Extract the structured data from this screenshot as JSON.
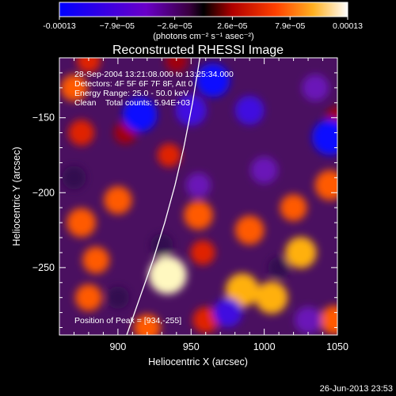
{
  "chart_data": {
    "type": "heatmap",
    "title": "Reconstructed RHESSI Image",
    "xlabel": "Heliocentric X (arcsec)",
    "ylabel": "Heliocentric Y (arcsec)",
    "xlim": [
      860,
      1050
    ],
    "ylim": [
      -295,
      -110
    ],
    "xticks": [
      900,
      950,
      1000,
      1050
    ],
    "yticks": [
      -150,
      -200,
      -250
    ],
    "colorbar": {
      "ticks": [
        "-0.00013",
        "−7.9e−05",
        "−2.6e−05",
        "2.6e−05",
        "7.9e−05",
        "0.00013"
      ],
      "unit": "(photons cm⁻² s⁻¹ asec⁻²)",
      "min": -0.00013,
      "max": 0.00013
    },
    "info_lines": [
      "28-Sep-2004 13:21:08.000 to 13:25:34.000",
      "Detectors: 4F 5F 6F 7F 8F, Att 0",
      "Energy Range: 25.0 - 50.0 keV",
      "Clean    Total counts: 5.94E+03"
    ],
    "peak_text": "Position of Peak = [934,-255]",
    "peak": [
      934,
      -255
    ],
    "blobs": [
      {
        "x": 934,
        "y": -255,
        "v": 1.0
      },
      {
        "x": 985,
        "y": -265,
        "v": 0.8
      },
      {
        "x": 1005,
        "y": -270,
        "v": 0.75
      },
      {
        "x": 1025,
        "y": -240,
        "v": 0.7
      },
      {
        "x": 1045,
        "y": -195,
        "v": 0.65
      },
      {
        "x": 955,
        "y": -215,
        "v": 0.6
      },
      {
        "x": 990,
        "y": -225,
        "v": 0.6
      },
      {
        "x": 875,
        "y": -220,
        "v": 0.6
      },
      {
        "x": 900,
        "y": -205,
        "v": 0.55
      },
      {
        "x": 1020,
        "y": -210,
        "v": 0.5
      },
      {
        "x": 1048,
        "y": -285,
        "v": 0.6
      },
      {
        "x": 960,
        "y": -285,
        "v": 0.45
      },
      {
        "x": 880,
        "y": -270,
        "v": 0.5
      },
      {
        "x": 920,
        "y": -290,
        "v": 0.5
      },
      {
        "x": 875,
        "y": -160,
        "v": 0.45
      },
      {
        "x": 870,
        "y": -130,
        "v": 0.5
      },
      {
        "x": 935,
        "y": -175,
        "v": 0.35
      },
      {
        "x": 885,
        "y": -245,
        "v": 0.5
      },
      {
        "x": 905,
        "y": -160,
        "v": 0.3
      },
      {
        "x": 1050,
        "y": -150,
        "v": 0.3
      },
      {
        "x": 958,
        "y": -240,
        "v": 0.4
      },
      {
        "x": 940,
        "y": -112,
        "v": 0.3
      },
      {
        "x": 880,
        "y": -112,
        "v": 0.35
      },
      {
        "x": 965,
        "y": -125,
        "v": -0.8
      },
      {
        "x": 950,
        "y": -145,
        "v": -0.7
      },
      {
        "x": 915,
        "y": -148,
        "v": -0.85
      },
      {
        "x": 990,
        "y": -145,
        "v": -0.6
      },
      {
        "x": 1035,
        "y": -130,
        "v": -0.5
      },
      {
        "x": 1045,
        "y": -163,
        "v": -0.9
      },
      {
        "x": 1000,
        "y": -185,
        "v": -0.5
      },
      {
        "x": 955,
        "y": -195,
        "v": -0.4
      },
      {
        "x": 930,
        "y": -235,
        "v": -0.3
      },
      {
        "x": 975,
        "y": -280,
        "v": -0.6
      },
      {
        "x": 1030,
        "y": -285,
        "v": -0.5
      },
      {
        "x": 900,
        "y": -270,
        "v": -0.3
      },
      {
        "x": 870,
        "y": -190,
        "v": -0.35
      },
      {
        "x": 1010,
        "y": -250,
        "v": -0.25
      }
    ],
    "limb": [
      [
        906,
        -295
      ],
      [
        915,
        -270
      ],
      [
        924,
        -245
      ],
      [
        932,
        -220
      ],
      [
        939,
        -195
      ],
      [
        945,
        -170
      ],
      [
        951,
        -140
      ],
      [
        956,
        -110
      ]
    ],
    "grid": false
  },
  "footer": {
    "date": "26-Jun-2013 23:53"
  }
}
